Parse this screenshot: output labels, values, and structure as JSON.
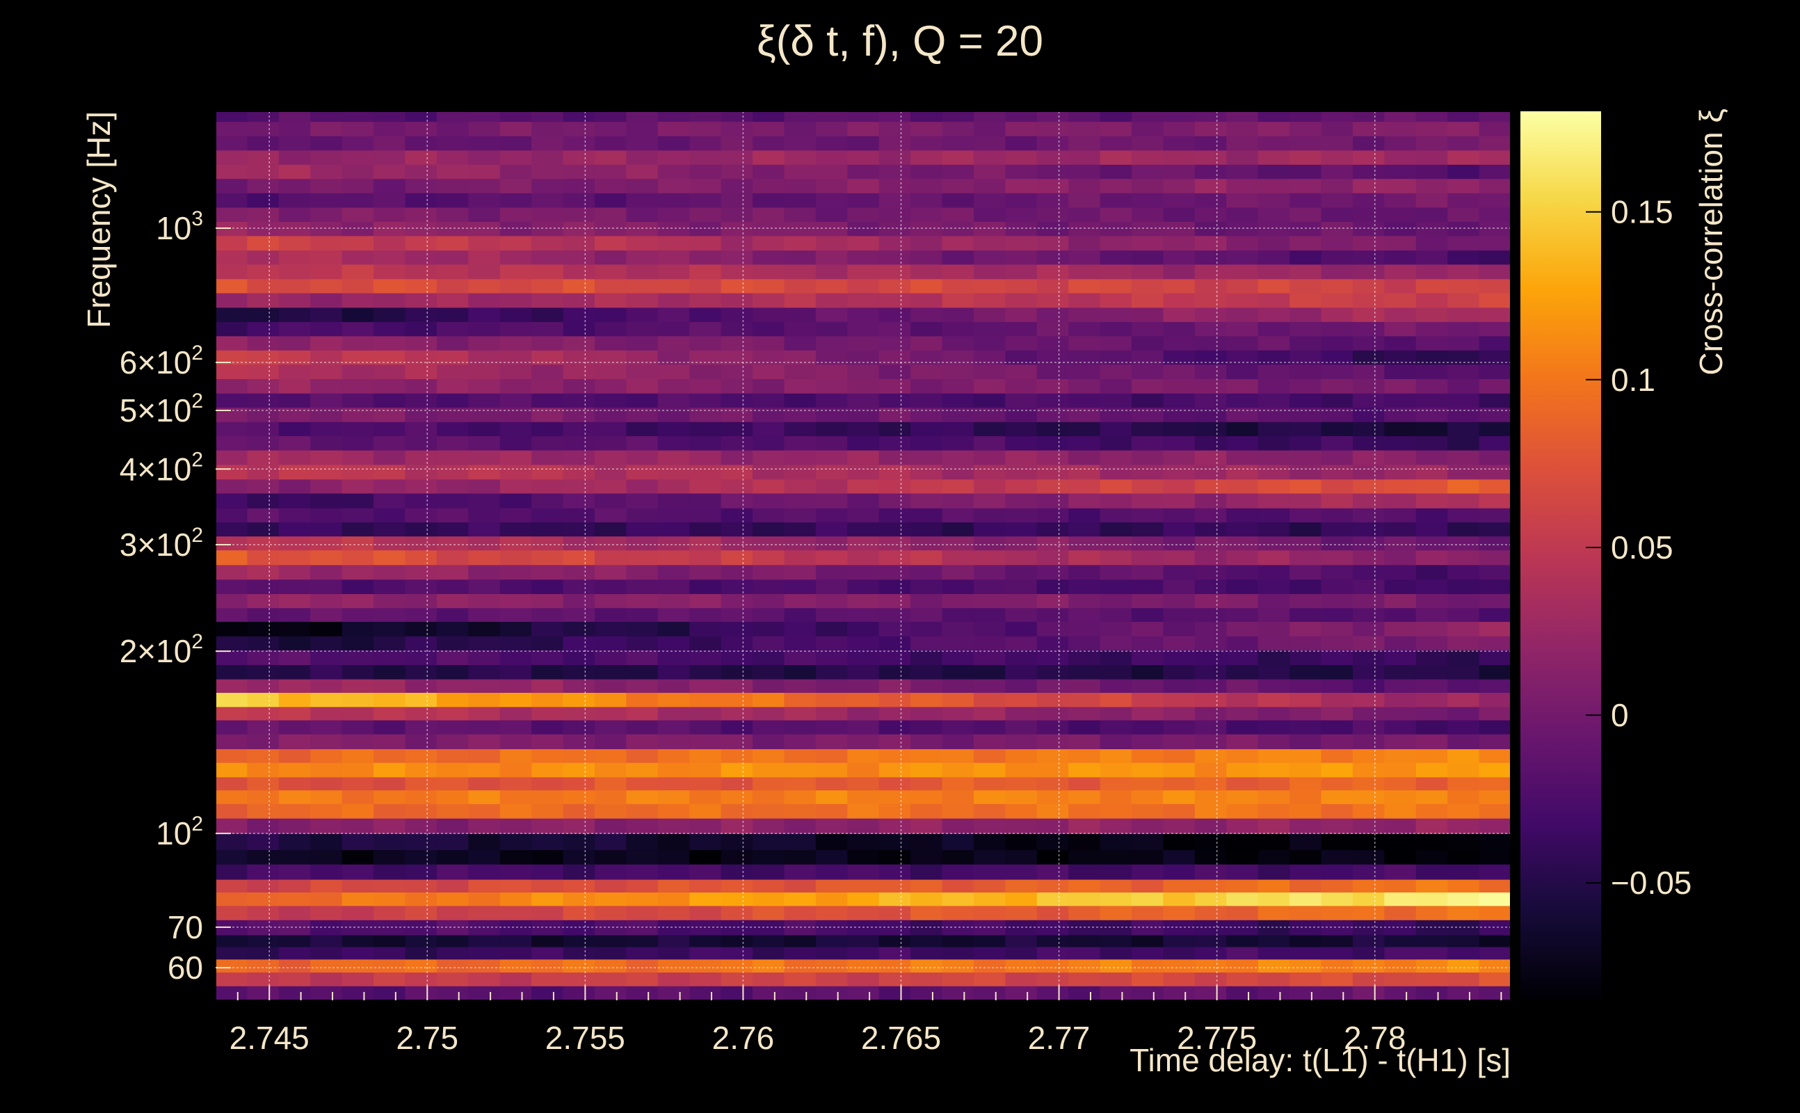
{
  "chart_data": {
    "type": "heatmap",
    "title": "ξ(δ t, f), Q = 20",
    "xlabel": "Time delay: t(L1) - t(H1) [s]",
    "ylabel": "Frequency [Hz]",
    "colorbar_label": "Cross-correlation ξ",
    "x_range": [
      2.7433,
      2.7843
    ],
    "x_bins": 41,
    "y_range": [
      53,
      1560
    ],
    "y_scale": "log",
    "grid": true,
    "colormap": "inferno",
    "colorbar_range": [
      -0.085,
      0.18
    ],
    "x_ticks": [
      {
        "value": 2.745,
        "label": "2.745"
      },
      {
        "value": 2.75,
        "label": "2.75"
      },
      {
        "value": 2.755,
        "label": "2.755"
      },
      {
        "value": 2.76,
        "label": "2.76"
      },
      {
        "value": 2.765,
        "label": "2.765"
      },
      {
        "value": 2.77,
        "label": "2.77"
      },
      {
        "value": 2.775,
        "label": "2.775"
      },
      {
        "value": 2.78,
        "label": "2.78"
      }
    ],
    "y_ticks": [
      {
        "value": 60,
        "base": "60",
        "sup": ""
      },
      {
        "value": 70,
        "base": "70",
        "sup": ""
      },
      {
        "value": 100,
        "base": "10",
        "sup": "2"
      },
      {
        "value": 200,
        "base": "2×10",
        "sup": "2"
      },
      {
        "value": 300,
        "base": "3×10",
        "sup": "2"
      },
      {
        "value": 400,
        "base": "4×10",
        "sup": "2"
      },
      {
        "value": 500,
        "base": "5×10",
        "sup": "2"
      },
      {
        "value": 600,
        "base": "6×10",
        "sup": "2"
      },
      {
        "value": 1000,
        "base": "10",
        "sup": "3"
      }
    ],
    "colorbar_ticks": [
      {
        "value": -0.05,
        "label": "−0.05"
      },
      {
        "value": 0,
        "label": "0"
      },
      {
        "value": 0.05,
        "label": "0.05"
      },
      {
        "value": 0.1,
        "label": "0.1"
      },
      {
        "value": 0.15,
        "label": "0.15"
      }
    ],
    "rows": [
      {
        "f_low": 53,
        "f_high": 56,
        "start": -0.02,
        "end": -0.01
      },
      {
        "f_low": 56,
        "f_high": 59,
        "start": 0.05,
        "end": 0.07
      },
      {
        "f_low": 59,
        "f_high": 62,
        "start": 0.09,
        "end": 0.11
      },
      {
        "f_low": 62,
        "f_high": 65,
        "start": -0.04,
        "end": -0.03
      },
      {
        "f_low": 65,
        "f_high": 68,
        "start": -0.06,
        "end": -0.06
      },
      {
        "f_low": 68,
        "f_high": 72,
        "start": -0.02,
        "end": -0.04
      },
      {
        "f_low": 72,
        "f_high": 76,
        "start": 0.05,
        "end": 0.1
      },
      {
        "f_low": 76,
        "f_high": 80,
        "start": 0.09,
        "end": 0.17
      },
      {
        "f_low": 80,
        "f_high": 84,
        "start": 0.06,
        "end": 0.1
      },
      {
        "f_low": 84,
        "f_high": 89,
        "start": -0.03,
        "end": -0.03
      },
      {
        "f_low": 89,
        "f_high": 94,
        "start": -0.07,
        "end": -0.08
      },
      {
        "f_low": 94,
        "f_high": 100,
        "start": -0.05,
        "end": -0.09
      },
      {
        "f_low": 100,
        "f_high": 106,
        "start": 0.01,
        "end": 0.02
      },
      {
        "f_low": 106,
        "f_high": 112,
        "start": 0.09,
        "end": 0.1
      },
      {
        "f_low": 112,
        "f_high": 118,
        "start": 0.1,
        "end": 0.11
      },
      {
        "f_low": 118,
        "f_high": 124,
        "start": 0.07,
        "end": 0.09
      },
      {
        "f_low": 124,
        "f_high": 131,
        "start": 0.11,
        "end": 0.12
      },
      {
        "f_low": 131,
        "f_high": 138,
        "start": 0.09,
        "end": 0.11
      },
      {
        "f_low": 138,
        "f_high": 146,
        "start": 0.01,
        "end": 0.0
      },
      {
        "f_low": 146,
        "f_high": 154,
        "start": -0.01,
        "end": -0.03
      },
      {
        "f_low": 154,
        "f_high": 162,
        "start": 0.05,
        "end": 0.0
      },
      {
        "f_low": 162,
        "f_high": 171,
        "start": 0.15,
        "end": 0.02
      },
      {
        "f_low": 171,
        "f_high": 180,
        "start": 0.03,
        "end": -0.02
      },
      {
        "f_low": 180,
        "f_high": 190,
        "start": -0.05,
        "end": -0.05
      },
      {
        "f_low": 190,
        "f_high": 201,
        "start": -0.02,
        "end": -0.04
      },
      {
        "f_low": 201,
        "f_high": 212,
        "start": -0.06,
        "end": 0.01
      },
      {
        "f_low": 212,
        "f_high": 224,
        "start": -0.08,
        "end": 0.02
      },
      {
        "f_low": 224,
        "f_high": 236,
        "start": -0.01,
        "end": -0.02
      },
      {
        "f_low": 236,
        "f_high": 249,
        "start": 0.02,
        "end": 0.0
      },
      {
        "f_low": 249,
        "f_high": 263,
        "start": -0.02,
        "end": -0.03
      },
      {
        "f_low": 263,
        "f_high": 278,
        "start": 0.03,
        "end": -0.03
      },
      {
        "f_low": 278,
        "f_high": 294,
        "start": 0.08,
        "end": 0.01
      },
      {
        "f_low": 294,
        "f_high": 310,
        "start": 0.05,
        "end": -0.01
      },
      {
        "f_low": 310,
        "f_high": 327,
        "start": -0.04,
        "end": -0.04
      },
      {
        "f_low": 327,
        "f_high": 345,
        "start": -0.02,
        "end": -0.02
      },
      {
        "f_low": 345,
        "f_high": 365,
        "start": -0.04,
        "end": 0.04
      },
      {
        "f_low": 365,
        "f_high": 385,
        "start": 0.01,
        "end": 0.08
      },
      {
        "f_low": 385,
        "f_high": 407,
        "start": 0.05,
        "end": 0.02
      },
      {
        "f_low": 407,
        "f_high": 430,
        "start": 0.03,
        "end": 0.01
      },
      {
        "f_low": 430,
        "f_high": 454,
        "start": -0.01,
        "end": -0.04
      },
      {
        "f_low": 454,
        "f_high": 479,
        "start": -0.02,
        "end": -0.06
      },
      {
        "f_low": 479,
        "f_high": 506,
        "start": 0.01,
        "end": -0.02
      },
      {
        "f_low": 506,
        "f_high": 534,
        "start": -0.02,
        "end": -0.03
      },
      {
        "f_low": 534,
        "f_high": 564,
        "start": 0.02,
        "end": 0.0
      },
      {
        "f_low": 564,
        "f_high": 596,
        "start": 0.04,
        "end": -0.02
      },
      {
        "f_low": 596,
        "f_high": 629,
        "start": 0.06,
        "end": -0.05
      },
      {
        "f_low": 629,
        "f_high": 664,
        "start": 0.02,
        "end": -0.02
      },
      {
        "f_low": 664,
        "f_high": 701,
        "start": -0.03,
        "end": 0.0
      },
      {
        "f_low": 701,
        "f_high": 740,
        "start": -0.06,
        "end": 0.04
      },
      {
        "f_low": 740,
        "f_high": 782,
        "start": 0.02,
        "end": 0.06
      },
      {
        "f_low": 782,
        "f_high": 825,
        "start": 0.07,
        "end": 0.06
      },
      {
        "f_low": 825,
        "f_high": 872,
        "start": 0.05,
        "end": 0.02
      },
      {
        "f_low": 872,
        "f_high": 920,
        "start": 0.04,
        "end": -0.03
      },
      {
        "f_low": 920,
        "f_high": 972,
        "start": 0.06,
        "end": 0.0
      },
      {
        "f_low": 972,
        "f_high": 1026,
        "start": 0.02,
        "end": -0.01
      },
      {
        "f_low": 1026,
        "f_high": 1083,
        "start": 0.01,
        "end": -0.01
      },
      {
        "f_low": 1083,
        "f_high": 1144,
        "start": -0.02,
        "end": 0.0
      },
      {
        "f_low": 1144,
        "f_high": 1208,
        "start": 0.0,
        "end": 0.02
      },
      {
        "f_low": 1208,
        "f_high": 1275,
        "start": 0.03,
        "end": -0.02
      },
      {
        "f_low": 1275,
        "f_high": 1346,
        "start": 0.02,
        "end": 0.03
      },
      {
        "f_low": 1346,
        "f_high": 1421,
        "start": -0.01,
        "end": 0.0
      },
      {
        "f_low": 1421,
        "f_high": 1501,
        "start": 0.0,
        "end": 0.01
      },
      {
        "f_low": 1501,
        "f_high": 1560,
        "start": -0.02,
        "end": -0.01
      }
    ]
  }
}
